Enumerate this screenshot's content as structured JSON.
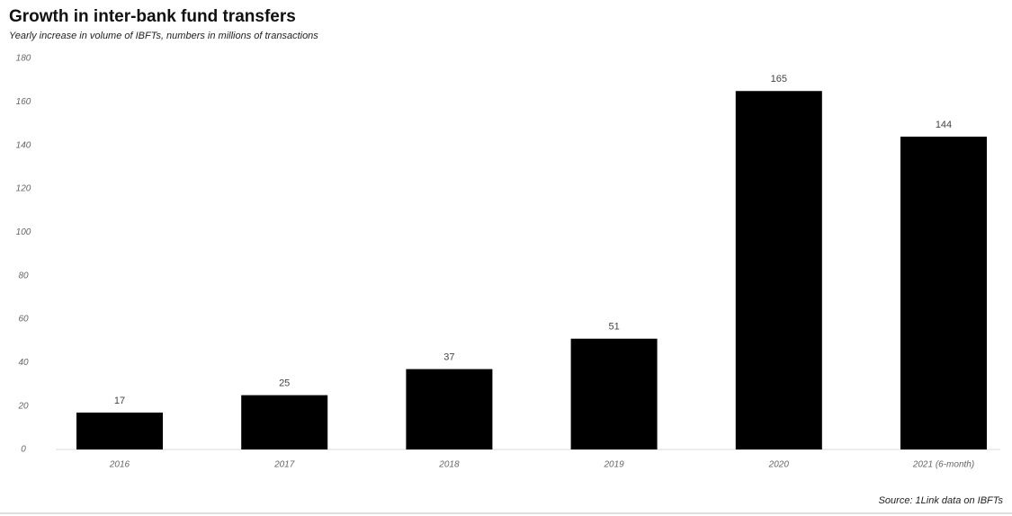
{
  "chart_data": {
    "type": "bar",
    "title": "Growth in inter-bank fund transfers",
    "subtitle": "Yearly increase in volume of IBFTs, numbers in millions of transactions",
    "source": "Source: 1Link data on IBFTs",
    "categories": [
      "2016",
      "2017",
      "2018",
      "2019",
      "2020",
      "2021 (6-month)"
    ],
    "values": [
      17,
      25,
      37,
      51,
      165,
      144
    ],
    "color": "#000000",
    "ylim": [
      0,
      180
    ],
    "yticks": [
      0,
      20,
      40,
      60,
      80,
      100,
      120,
      140,
      160,
      180
    ],
    "grid": false
  }
}
